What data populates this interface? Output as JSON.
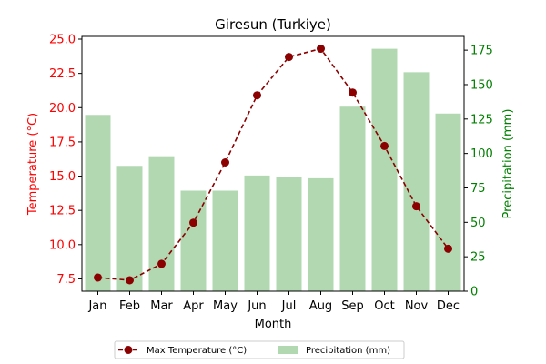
{
  "chart_data": {
    "type": "bar+line",
    "title": "Giresun (Turkiye)",
    "xlabel": "Month",
    "categories": [
      "Jan",
      "Feb",
      "Mar",
      "Apr",
      "May",
      "Jun",
      "Jul",
      "Aug",
      "Sep",
      "Oct",
      "Nov",
      "Dec"
    ],
    "left_axis": {
      "label": "Temperature (°C)",
      "color": "#ff0000",
      "ylim": [
        6.6,
        25.2
      ],
      "ticks": [
        "7.5",
        "10.0",
        "12.5",
        "15.0",
        "17.5",
        "20.0",
        "22.5",
        "25.0"
      ]
    },
    "right_axis": {
      "label": "Precipitation (mm)",
      "color": "#008000",
      "ylim": [
        0,
        185
      ],
      "ticks": [
        "0",
        "25",
        "50",
        "75",
        "100",
        "125",
        "150",
        "175"
      ]
    },
    "series": [
      {
        "name": "Precipitation (mm)",
        "kind": "bar",
        "axis": "right",
        "color": "#b2d8b2",
        "values": [
          128,
          91,
          98,
          73,
          73,
          84,
          83,
          82,
          134,
          176,
          159,
          129
        ]
      },
      {
        "name": "Max Temperature (°C)",
        "kind": "line",
        "axis": "left",
        "color": "#8b0000",
        "line_style": "dashed",
        "marker": "circle",
        "values": [
          7.6,
          7.4,
          8.6,
          11.6,
          16.0,
          20.9,
          23.7,
          24.3,
          21.1,
          17.2,
          12.8,
          9.7
        ]
      }
    ],
    "grid": false,
    "legend_placement": "bottom-center"
  }
}
